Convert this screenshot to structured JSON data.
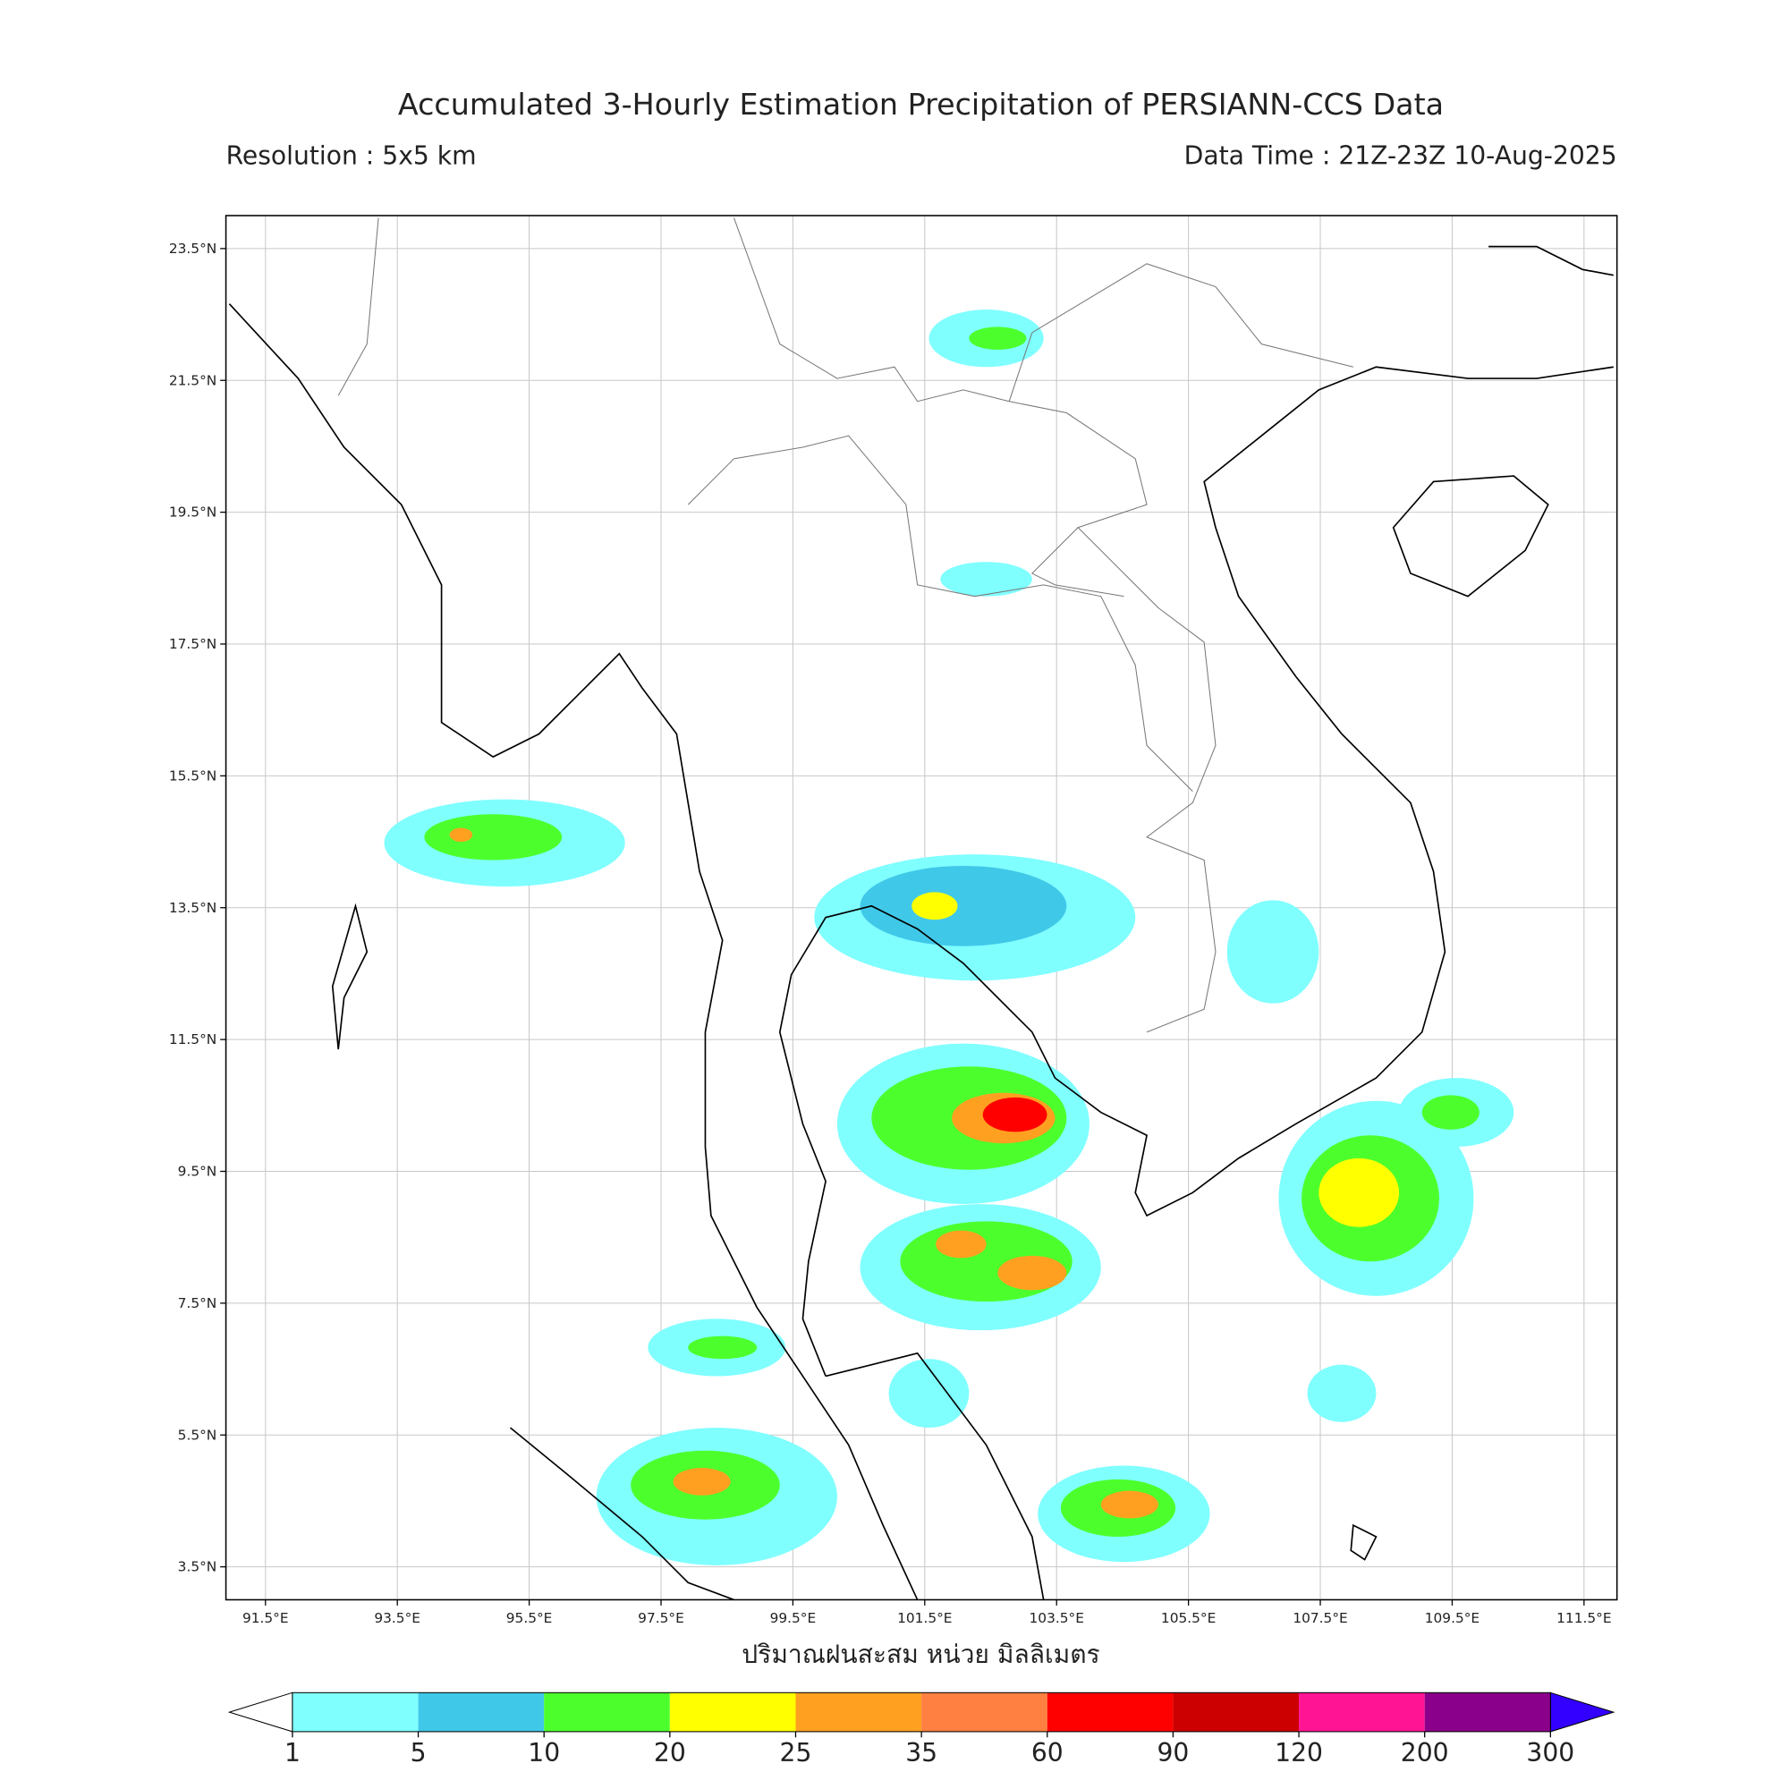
{
  "header": {
    "title": "Accumulated 3-Hourly Estimation Precipitation of PERSIANN-CCS Data",
    "resolution": "Resolution : 5x5 km",
    "data_time": "Data Time : 21Z-23Z 10-Aug-2025"
  },
  "map": {
    "xlim": [
      90.9,
      112.0
    ],
    "ylim": [
      3.0,
      24.0
    ],
    "xticks": [
      {
        "value": 91.5,
        "label": "91.5°E"
      },
      {
        "value": 93.5,
        "label": "93.5°E"
      },
      {
        "value": 95.5,
        "label": "95.5°E"
      },
      {
        "value": 97.5,
        "label": "97.5°E"
      },
      {
        "value": 99.5,
        "label": "99.5°E"
      },
      {
        "value": 101.5,
        "label": "101.5°E"
      },
      {
        "value": 103.5,
        "label": "103.5°E"
      },
      {
        "value": 105.5,
        "label": "105.5°E"
      },
      {
        "value": 107.5,
        "label": "107.5°E"
      },
      {
        "value": 109.5,
        "label": "109.5°E"
      },
      {
        "value": 111.5,
        "label": "111.5°E"
      }
    ],
    "yticks": [
      {
        "value": 3.5,
        "label": "3.5°N"
      },
      {
        "value": 5.5,
        "label": "5.5°N"
      },
      {
        "value": 7.5,
        "label": "7.5°N"
      },
      {
        "value": 9.5,
        "label": "9.5°N"
      },
      {
        "value": 11.5,
        "label": "11.5°N"
      },
      {
        "value": 13.5,
        "label": "13.5°N"
      },
      {
        "value": 15.5,
        "label": "15.5°N"
      },
      {
        "value": 17.5,
        "label": "17.5°N"
      },
      {
        "value": 19.5,
        "label": "19.5°N"
      },
      {
        "value": 21.5,
        "label": "21.5°N"
      },
      {
        "value": 23.5,
        "label": "23.5°N"
      }
    ],
    "xlabel": "ปริมาณฝนสะสม หน่วย มิลลิเมตร"
  },
  "colorbar": {
    "levels": [
      1,
      5,
      10,
      20,
      25,
      35,
      60,
      90,
      120,
      200,
      300
    ],
    "colors": [
      "#80ffff",
      "#40c8e8",
      "#4cff2c",
      "#ffff00",
      "#ffa020",
      "#ff8040",
      "#ff0000",
      "#cc0000",
      "#ff1493",
      "#8b008b"
    ],
    "under_color": "#ffffff",
    "over_color": "#3300ff"
  }
}
